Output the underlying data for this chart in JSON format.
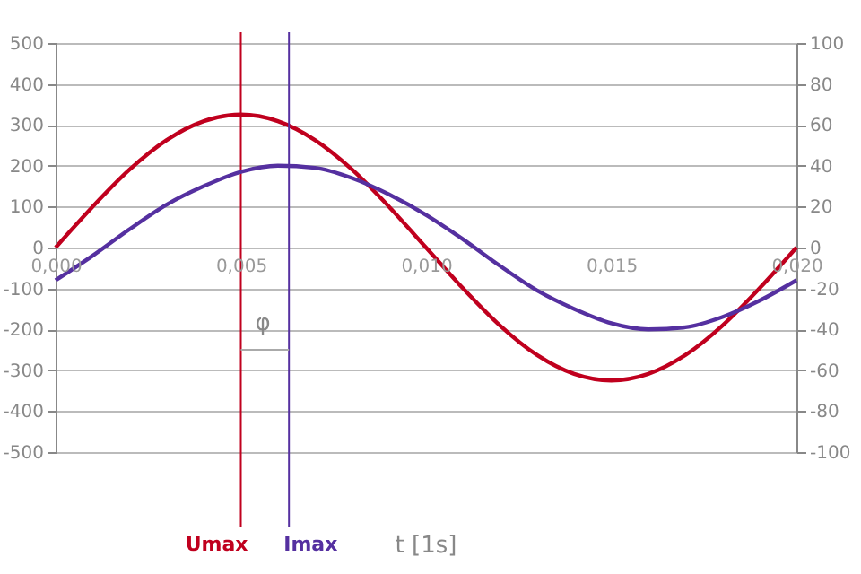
{
  "chart_data": {
    "type": "line",
    "xlabel": "t [1s]",
    "x": [
      0,
      0.001,
      0.002,
      0.003,
      0.004,
      0.005,
      0.006,
      0.007,
      0.008,
      0.009,
      0.01,
      0.011,
      0.012,
      0.013,
      0.014,
      0.015,
      0.016,
      0.017,
      0.018,
      0.019,
      0.02
    ],
    "series": [
      {
        "color": "#c0001e",
        "values": [
          0,
          100,
          191,
          263,
          309,
          325,
          309,
          263,
          191,
          100,
          0,
          -100,
          -191,
          -263,
          -309,
          -325,
          -309,
          -263,
          -191,
          -100,
          0
        ]
      },
      {
        "color": "#5530a0",
        "axis": "y2",
        "values": [
          -16,
          -4,
          9,
          21,
          30,
          37,
          40,
          39,
          34,
          26,
          16,
          4,
          -9,
          -21,
          -30,
          -37,
          -40,
          -39,
          -34,
          -26,
          -16
        ]
      }
    ],
    "xlim": [
      0,
      0.02
    ],
    "xticks": [
      {
        "value": 0,
        "label": "0,000"
      },
      {
        "value": 0.005,
        "label": "0,005"
      },
      {
        "value": 0.01,
        "label": "0,010"
      },
      {
        "value": 0.015,
        "label": "0,015"
      },
      {
        "value": 0.02,
        "label": "0,020"
      }
    ],
    "ylim": [
      -500,
      500
    ],
    "yticks": [
      -500,
      -400,
      -300,
      -200,
      -100,
      0,
      100,
      200,
      300,
      400,
      500
    ],
    "y2lim": [
      -100,
      100
    ],
    "y2ticks": [
      -100,
      -80,
      -60,
      -40,
      -20,
      0,
      20,
      40,
      60,
      80,
      100
    ],
    "ref_lines": [
      {
        "axis": "x",
        "value": 0.005,
        "label": "Umax",
        "color": "#c0001e"
      },
      {
        "axis": "x",
        "value": 0.0063,
        "label": "Imax",
        "color": "#5530a0"
      }
    ],
    "annotations": [
      "φ"
    ],
    "grid": "y",
    "marker": "none",
    "line_style": "solid"
  }
}
